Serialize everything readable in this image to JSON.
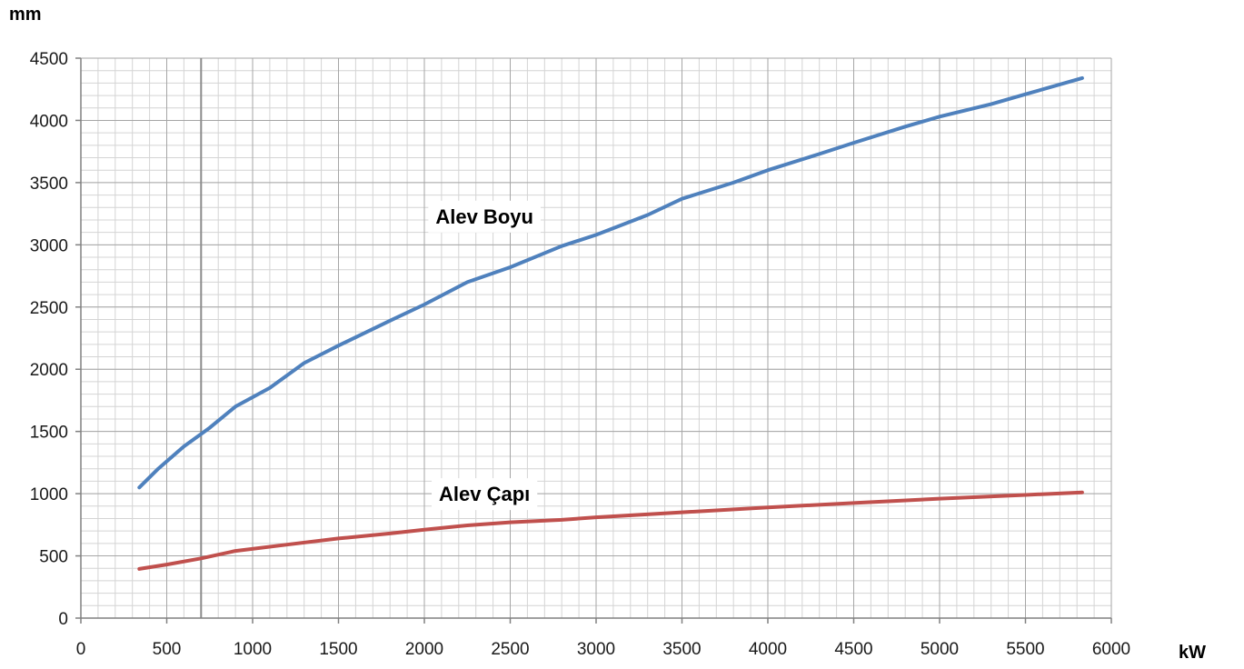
{
  "chart_data": {
    "type": "line",
    "title": "",
    "ylabel": "mm",
    "xlabel": "kW",
    "xlim": [
      0,
      6000
    ],
    "ylim": [
      0,
      4500
    ],
    "x_ticks": [
      0,
      500,
      1000,
      1500,
      2000,
      2500,
      3000,
      3500,
      4000,
      4500,
      5000,
      5500,
      6000
    ],
    "y_ticks": [
      0,
      500,
      1000,
      1500,
      2000,
      2500,
      3000,
      3500,
      4000,
      4500
    ],
    "grid": true,
    "minor_grid": {
      "x_step": 100,
      "y_step": 100
    },
    "reference_line_x": 700,
    "annotations": [
      {
        "text": "Alev Boyu",
        "x": 2350,
        "y": 3230
      },
      {
        "text": "Alev Çapı",
        "x": 2350,
        "y": 1000
      }
    ],
    "series": [
      {
        "label": "Alev Boyu",
        "color": "#4f81bd",
        "points": [
          [
            340,
            1050
          ],
          [
            450,
            1200
          ],
          [
            600,
            1380
          ],
          [
            750,
            1530
          ],
          [
            900,
            1700
          ],
          [
            1100,
            1850
          ],
          [
            1300,
            2050
          ],
          [
            1500,
            2190
          ],
          [
            1800,
            2390
          ],
          [
            2000,
            2520
          ],
          [
            2250,
            2700
          ],
          [
            2500,
            2820
          ],
          [
            2800,
            2990
          ],
          [
            3000,
            3080
          ],
          [
            3300,
            3240
          ],
          [
            3500,
            3370
          ],
          [
            3800,
            3500
          ],
          [
            4000,
            3600
          ],
          [
            4300,
            3730
          ],
          [
            4500,
            3820
          ],
          [
            4800,
            3950
          ],
          [
            5000,
            4030
          ],
          [
            5300,
            4130
          ],
          [
            5500,
            4210
          ],
          [
            5830,
            4340
          ]
        ]
      },
      {
        "label": "Alev Çapı",
        "color": "#c0504d",
        "points": [
          [
            340,
            395
          ],
          [
            500,
            430
          ],
          [
            700,
            480
          ],
          [
            900,
            540
          ],
          [
            1200,
            590
          ],
          [
            1500,
            640
          ],
          [
            1800,
            680
          ],
          [
            2000,
            710
          ],
          [
            2250,
            745
          ],
          [
            2500,
            770
          ],
          [
            2800,
            790
          ],
          [
            3000,
            810
          ],
          [
            3500,
            850
          ],
          [
            4000,
            890
          ],
          [
            4500,
            925
          ],
          [
            5000,
            960
          ],
          [
            5500,
            990
          ],
          [
            5830,
            1010
          ]
        ]
      }
    ]
  }
}
